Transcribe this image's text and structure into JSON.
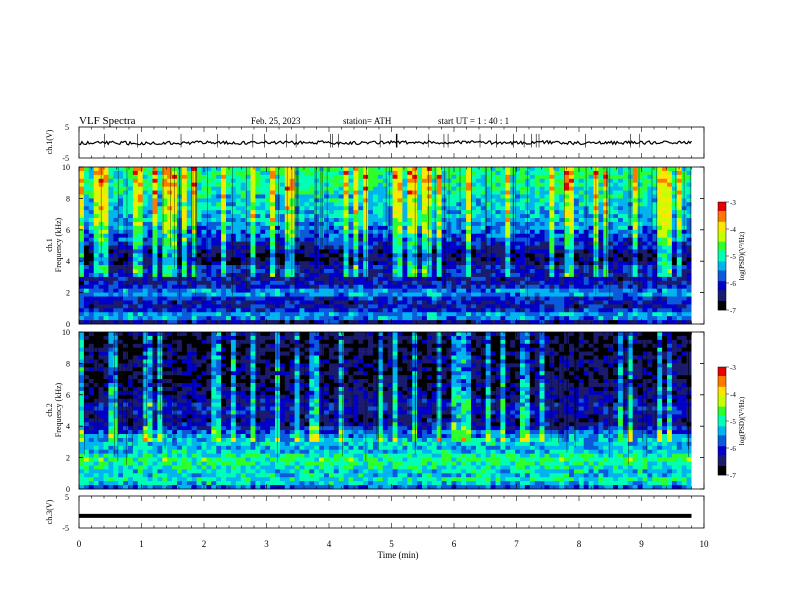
{
  "header": {
    "title": "VLF  Spectra",
    "date": "Feb. 25, 2023",
    "station": "station= ATH",
    "start": "start  UT  =   1 : 40 : 1"
  },
  "colors": {
    "palette": [
      "#000000",
      "#1b1b6e",
      "#0000c8",
      "#0a5adc",
      "#00b4f0",
      "#00ffb4",
      "#2dff2d",
      "#c8ff00",
      "#ffe600",
      "#ff7800",
      "#e60000",
      "#ffffff"
    ],
    "waveform": "#000000"
  },
  "chart_data": [
    {
      "type": "line",
      "id": "ch1_waveform",
      "ylabel": "ch.1(V)",
      "ylim": [
        -5,
        5
      ],
      "ytick_labels": [
        "5",
        "-5"
      ],
      "xlim": [
        0,
        10
      ],
      "x": [
        0,
        0.5,
        1,
        1.5,
        2,
        2.5,
        3,
        3.5,
        4,
        4.5,
        5,
        5.5,
        6,
        6.5,
        7,
        7.5,
        8,
        8.5,
        9,
        9.5,
        9.8
      ],
      "y": [
        -0.2,
        -0.1,
        -0.3,
        -0.1,
        0.0,
        -0.2,
        0.1,
        -0.1,
        0.0,
        -0.2,
        0.1,
        -0.1,
        0.2,
        0.0,
        -0.1,
        0.1,
        -0.2,
        0.0,
        -0.1,
        0.1,
        0.0
      ]
    },
    {
      "type": "heatmap",
      "id": "ch1_spectrogram",
      "ylabel": "ch.1\nFrequency  (kHz)",
      "ylim": [
        0,
        10
      ],
      "ytick_labels": [
        "10",
        "8",
        "6",
        "4",
        "2",
        "0"
      ],
      "xlim": [
        0,
        9.8
      ],
      "colorbar": {
        "label": "log(PSD)(V²/Hz)",
        "range": [
          -7,
          -3
        ],
        "tick_labels": [
          "-3",
          "-4",
          "-5",
          "-6",
          "-7"
        ]
      },
      "profile_khz": [
        0,
        0.5,
        1,
        1.5,
        2,
        2.5,
        3,
        3.5,
        4,
        4.5,
        5,
        6,
        7,
        8,
        9,
        10
      ],
      "profile_log_psd": [
        -6.6,
        -5.2,
        -6.2,
        -6.2,
        -5.3,
        -6.2,
        -6.2,
        -6.0,
        -6.5,
        -6.5,
        -6.1,
        -5.6,
        -5.3,
        -5.2,
        -4.9,
        -4.9
      ]
    },
    {
      "type": "heatmap",
      "id": "ch2_spectrogram",
      "ylabel": "ch.2\nFrequency  (kHz)",
      "ylim": [
        0,
        10
      ],
      "ytick_labels": [
        "10",
        "8",
        "6",
        "4",
        "2",
        "0"
      ],
      "xlim": [
        0,
        9.8
      ],
      "colorbar": {
        "label": "log(PSD)(V²/Hz)",
        "range": [
          -7,
          -3
        ],
        "tick_labels": [
          "-3",
          "-4",
          "-5",
          "-6",
          "-7"
        ]
      },
      "profile_khz": [
        0,
        0.5,
        1,
        1.5,
        2,
        2.5,
        3,
        3.5,
        4,
        4.5,
        5,
        6,
        7,
        8,
        9,
        10
      ],
      "profile_log_psd": [
        -6.0,
        -5.0,
        -5.3,
        -5.0,
        -4.8,
        -5.4,
        -5.2,
        -5.6,
        -6.2,
        -6.4,
        -6.1,
        -6.4,
        -6.6,
        -6.5,
        -6.7,
        -6.6
      ]
    },
    {
      "type": "line",
      "id": "ch3_waveform",
      "ylabel": "ch.3(V)",
      "ylim": [
        -5,
        5
      ],
      "ytick_labels": [
        "5",
        "-5"
      ],
      "xlim": [
        0,
        10
      ],
      "x": [
        0,
        9.8
      ],
      "y": [
        -1.2,
        -1.2
      ],
      "xlabel": "Time  (min)",
      "xtick_labels": [
        "0",
        "1",
        "2",
        "3",
        "4",
        "5",
        "6",
        "7",
        "8",
        "9",
        "10"
      ]
    }
  ]
}
